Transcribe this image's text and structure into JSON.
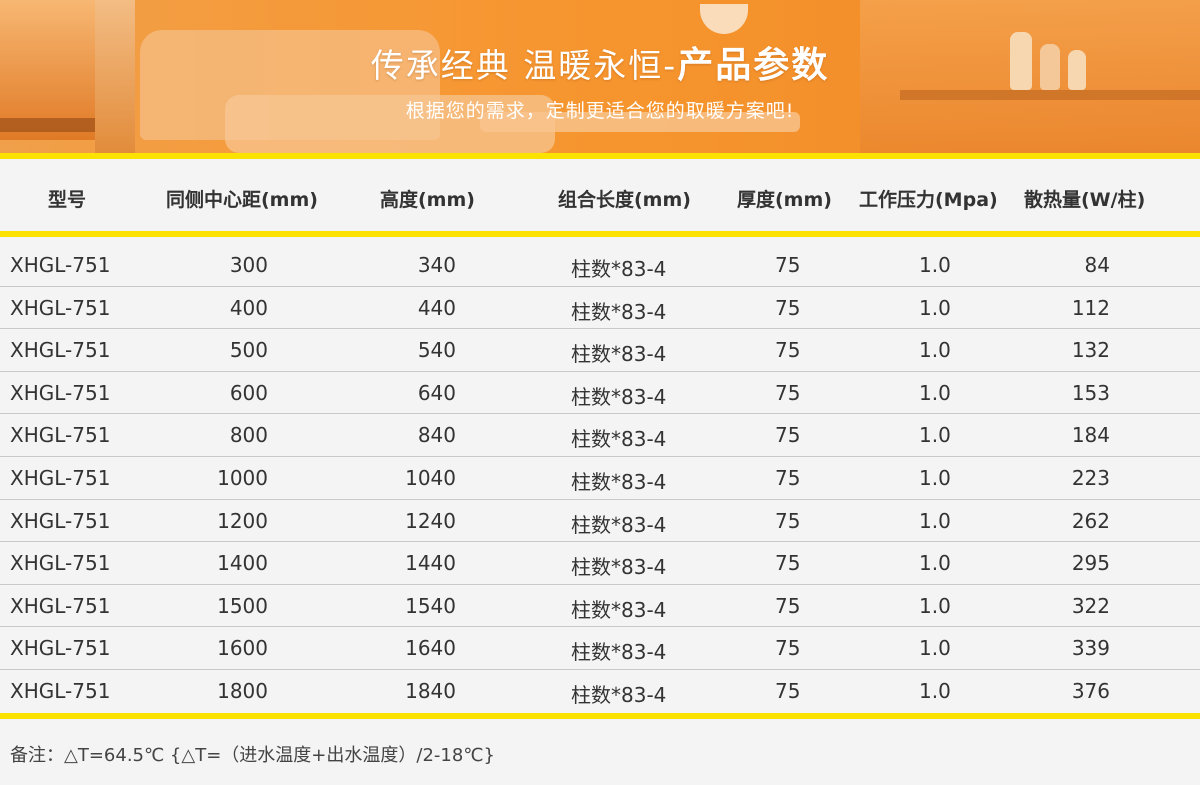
{
  "banner": {
    "title_main": "传承经典 温暖永恒-",
    "title_bold": "产品参数",
    "subtitle": "根据您的需求，定制更适合您的取暖方案吧!"
  },
  "colors": {
    "accent_yellow": "#fbe200",
    "banner_orange": "#f6952e"
  },
  "table": {
    "headers": [
      "型号",
      "同侧中心距(mm)",
      "高度(mm)",
      "组合长度(mm)",
      "厚度(mm)",
      "工作压力(Mpa)",
      "散热量(W/柱)"
    ],
    "rows": [
      [
        "XHGL-751",
        "300",
        "340",
        "柱数*83-4",
        "75",
        "1.0",
        "84"
      ],
      [
        "XHGL-751",
        "400",
        "440",
        "柱数*83-4",
        "75",
        "1.0",
        "112"
      ],
      [
        "XHGL-751",
        "500",
        "540",
        "柱数*83-4",
        "75",
        "1.0",
        "132"
      ],
      [
        "XHGL-751",
        "600",
        "640",
        "柱数*83-4",
        "75",
        "1.0",
        "153"
      ],
      [
        "XHGL-751",
        "800",
        "840",
        "柱数*83-4",
        "75",
        "1.0",
        "184"
      ],
      [
        "XHGL-751",
        "1000",
        "1040",
        "柱数*83-4",
        "75",
        "1.0",
        "223"
      ],
      [
        "XHGL-751",
        "1200",
        "1240",
        "柱数*83-4",
        "75",
        "1.0",
        "262"
      ],
      [
        "XHGL-751",
        "1400",
        "1440",
        "柱数*83-4",
        "75",
        "1.0",
        "295"
      ],
      [
        "XHGL-751",
        "1500",
        "1540",
        "柱数*83-4",
        "75",
        "1.0",
        "322"
      ],
      [
        "XHGL-751",
        "1600",
        "1640",
        "柱数*83-4",
        "75",
        "1.0",
        "339"
      ],
      [
        "XHGL-751",
        "1800",
        "1840",
        "柱数*83-4",
        "75",
        "1.0",
        "376"
      ]
    ]
  },
  "note": "备注：△T=64.5℃ {△T=（进水温度+出水温度）/2-18℃}"
}
